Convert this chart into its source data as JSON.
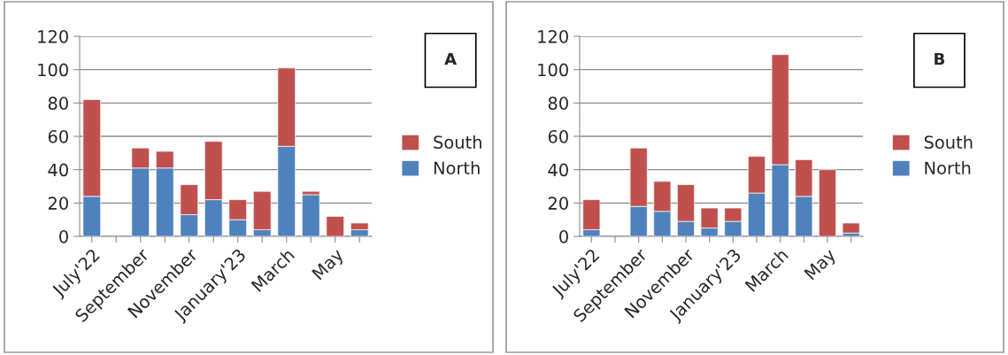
{
  "chart_data": [
    {
      "type": "bar",
      "stacked": true,
      "annotations": [
        "A"
      ],
      "categories": [
        "July'22",
        null,
        "September",
        null,
        "November",
        null,
        "January'23",
        null,
        "March",
        null,
        "May",
        null
      ],
      "ylim": [
        0,
        120
      ],
      "yticks": [
        0,
        20,
        40,
        60,
        80,
        100,
        120
      ],
      "grid": "y",
      "legend": "right",
      "series": [
        {
          "name": "North",
          "color": "#4f81bd",
          "values": [
            24,
            null,
            41,
            41,
            13,
            22,
            10,
            4,
            54,
            25,
            null,
            4
          ]
        },
        {
          "name": "South",
          "color": "#c0504d",
          "values": [
            58,
            null,
            12,
            10,
            18,
            35,
            12,
            23,
            47,
            2,
            12,
            4
          ]
        }
      ]
    },
    {
      "type": "bar",
      "stacked": true,
      "annotations": [
        "B"
      ],
      "categories": [
        "July'22",
        null,
        "September",
        null,
        "November",
        null,
        "January'23",
        null,
        "March",
        null,
        "May",
        null
      ],
      "ylim": [
        0,
        120
      ],
      "yticks": [
        0,
        20,
        40,
        60,
        80,
        100,
        120
      ],
      "grid": "y",
      "legend": "right",
      "series": [
        {
          "name": "North",
          "color": "#4f81bd",
          "values": [
            4,
            null,
            18,
            15,
            9,
            5,
            9,
            26,
            43,
            24,
            null,
            2
          ]
        },
        {
          "name": "South",
          "color": "#c0504d",
          "values": [
            18,
            null,
            35,
            18,
            22,
            12,
            8,
            22,
            66,
            22,
            40,
            6
          ]
        }
      ]
    }
  ]
}
